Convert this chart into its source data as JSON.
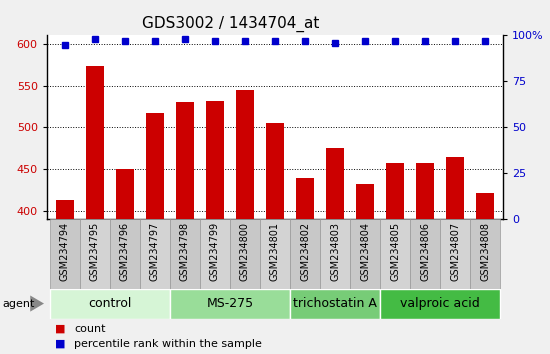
{
  "title": "GDS3002 / 1434704_at",
  "categories": [
    "GSM234794",
    "GSM234795",
    "GSM234796",
    "GSM234797",
    "GSM234798",
    "GSM234799",
    "GSM234800",
    "GSM234801",
    "GSM234802",
    "GSM234803",
    "GSM234804",
    "GSM234805",
    "GSM234806",
    "GSM234807",
    "GSM234808"
  ],
  "bar_values": [
    413,
    573,
    450,
    517,
    530,
    532,
    545,
    505,
    440,
    475,
    432,
    458,
    457,
    465,
    422
  ],
  "percentile_values": [
    95,
    98,
    97,
    97,
    98,
    97,
    97,
    97,
    97,
    96,
    97,
    97,
    97,
    97,
    97
  ],
  "bar_color": "#cc0000",
  "dot_color": "#0000cc",
  "ylim_left": [
    390,
    610
  ],
  "ylim_right": [
    0,
    100
  ],
  "yticks_left": [
    400,
    450,
    500,
    550,
    600
  ],
  "yticks_right": [
    0,
    25,
    50,
    75,
    100
  ],
  "plot_bg_color": "#ffffff",
  "col_bg_even": "#c8c8c8",
  "col_bg_odd": "#d3d3d3",
  "groups": [
    {
      "label": "control",
      "start": 0,
      "end": 3,
      "color": "#d6f5d6"
    },
    {
      "label": "MS-275",
      "start": 4,
      "end": 7,
      "color": "#99dd99"
    },
    {
      "label": "trichostatin A",
      "start": 8,
      "end": 10,
      "color": "#77cc77"
    },
    {
      "label": "valproic acid",
      "start": 11,
      "end": 14,
      "color": "#44bb44"
    }
  ],
  "agent_label": "agent",
  "legend_count_label": "count",
  "legend_percentile_label": "percentile rank within the sample",
  "bar_color_red": "#cc0000",
  "dot_color_blue": "#0000cc",
  "title_fontsize": 11,
  "tick_fontsize": 8,
  "xtick_fontsize": 7,
  "group_label_fontsize": 9,
  "bar_width": 0.6
}
